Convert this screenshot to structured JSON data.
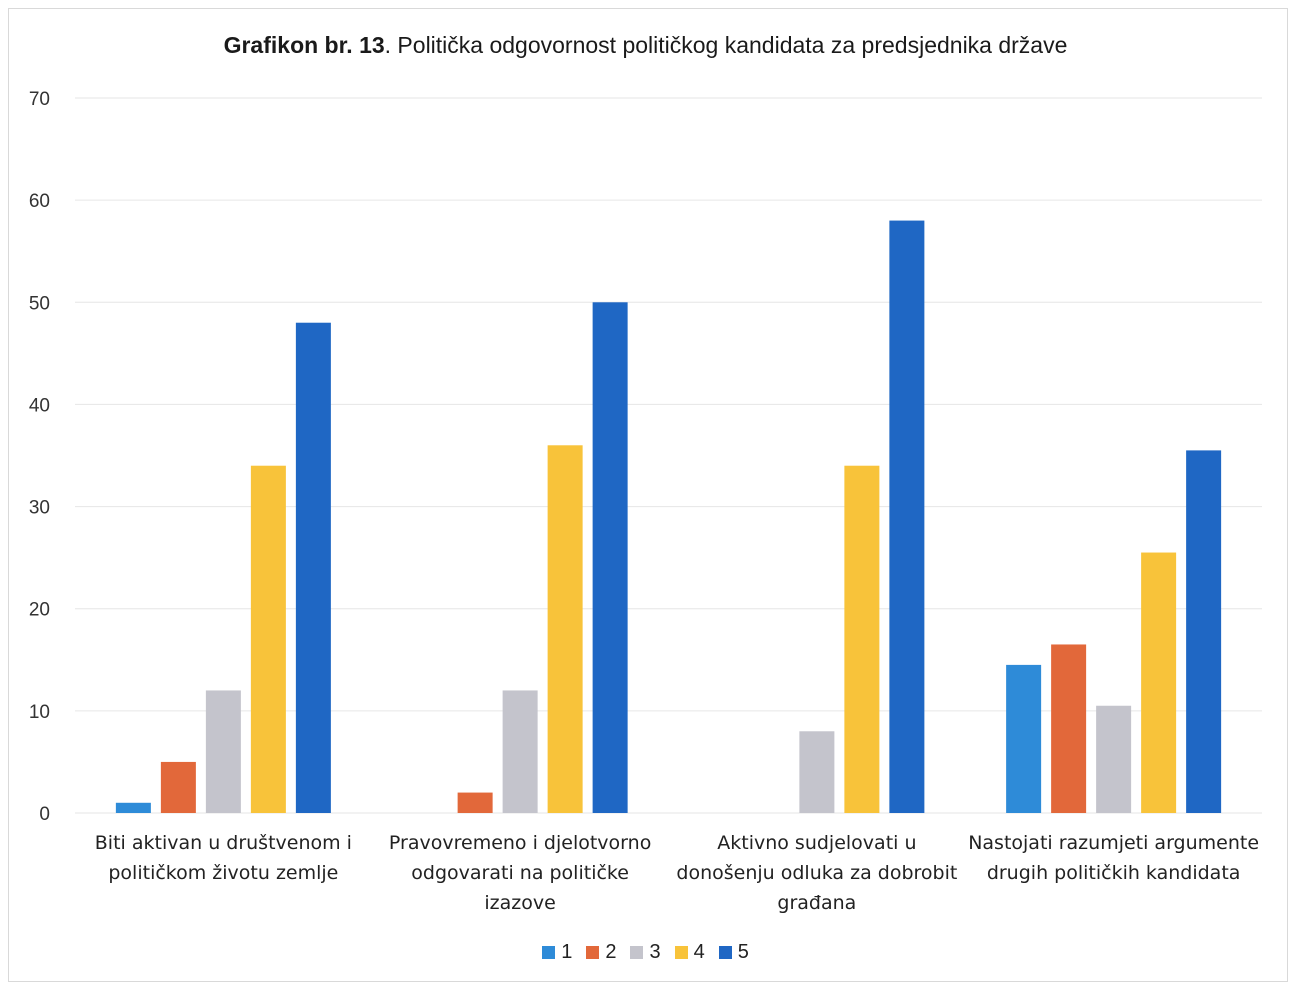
{
  "chart_data": {
    "type": "bar",
    "title_bold": "Grafikon br. 13",
    "title_rest": ". Politička odgovornost političkog kandidata za predsjednika države",
    "categories": [
      [
        "Biti aktivan u društvenom i",
        "političkom životu zemlje"
      ],
      [
        "Pravovremeno i djelotvorno",
        "odgovarati na političke",
        "izazove"
      ],
      [
        "Aktivno sudjelovati u",
        "donošenju odluka za dobrobit",
        "građana"
      ],
      [
        "Nastojati razumjeti argumente",
        "drugih političkih kandidata"
      ]
    ],
    "series": [
      {
        "name": "1",
        "color": "#2e8bd8",
        "values": [
          1,
          0,
          0,
          14.5
        ]
      },
      {
        "name": "2",
        "color": "#e2683a",
        "values": [
          5,
          2,
          0,
          16.5
        ]
      },
      {
        "name": "3",
        "color": "#c4c4cc",
        "values": [
          12,
          12,
          8,
          10.5
        ]
      },
      {
        "name": "4",
        "color": "#f8c33a",
        "values": [
          34,
          36,
          34,
          25.5
        ]
      },
      {
        "name": "5",
        "color": "#1f67c4",
        "values": [
          48,
          50,
          58,
          35.5
        ]
      }
    ],
    "ylim": [
      0,
      70
    ],
    "yticks": [
      "0",
      "10",
      "20",
      "30",
      "40",
      "50",
      "60",
      "70"
    ],
    "grid": true,
    "legend_position": "bottom"
  }
}
